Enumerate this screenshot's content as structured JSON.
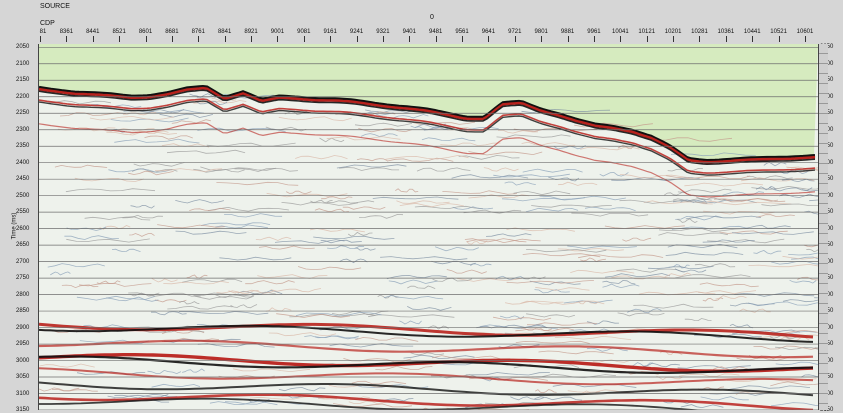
{
  "header": {
    "source_label": "SOURCE",
    "source_value": "0",
    "cdp_label": "CDP",
    "cdp_ticks": [
      "81",
      "8361",
      "8441",
      "8521",
      "8601",
      "8681",
      "8761",
      "8841",
      "8921",
      "9001",
      "9081",
      "9161",
      "9241",
      "9321",
      "9401",
      "9481",
      "9561",
      "9641",
      "9721",
      "9801",
      "9881",
      "9961",
      "10041",
      "10121",
      "10201",
      "10281",
      "10361",
      "10441",
      "10521",
      "10601"
    ]
  },
  "axis": {
    "ylabel": "Time (ms)",
    "time_ticks": [
      2050,
      2100,
      2150,
      2200,
      2250,
      2300,
      2350,
      2400,
      2450,
      2500,
      2550,
      2600,
      2650,
      2700,
      2750,
      2800,
      2850,
      2900,
      2950,
      3000,
      3050,
      3100,
      3150
    ],
    "time_range": [
      2040,
      3150
    ]
  },
  "colors": {
    "water": "#d6ebbf",
    "frame": "#d6d6d6",
    "trough": "#b8221d",
    "peak": "#111111",
    "wiggle_light": "#c49a8c",
    "wiggle_blue": "#8aa0b8",
    "grid": "#6e6e6e"
  },
  "seafloor_ms": [
    2172,
    2178,
    2186,
    2190,
    2193,
    2197,
    2195,
    2188,
    2175,
    2168,
    2200,
    2185,
    2210,
    2198,
    2200,
    2205,
    2208,
    2212,
    2218,
    2225,
    2232,
    2240,
    2250,
    2260,
    2262,
    2220,
    2215,
    2235,
    2250,
    2270,
    2285,
    2290,
    2300,
    2320,
    2350,
    2388,
    2392,
    2390,
    2388,
    2386,
    2383,
    2380,
    2378
  ]
}
